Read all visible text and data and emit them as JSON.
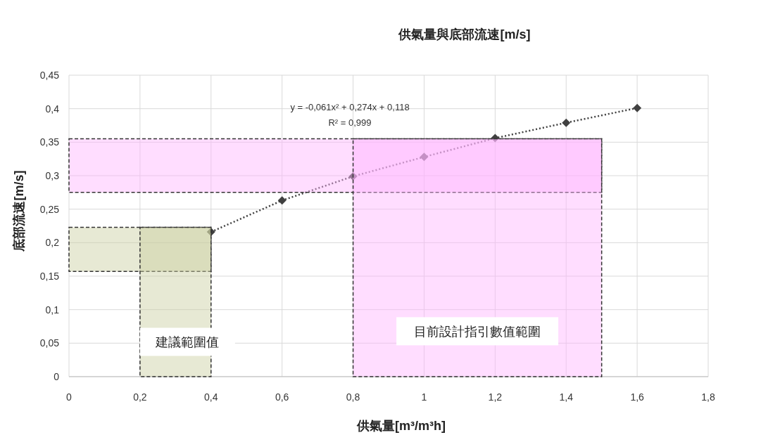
{
  "chart_data": {
    "type": "line",
    "title": "供氣量與底部流速[m/s]",
    "xlabel": "供氣量[m³/m³h]",
    "ylabel": "底部流速[m/s]",
    "x": [
      0.4,
      0.6,
      0.8,
      1.0,
      1.2,
      1.4,
      1.6
    ],
    "series": [
      {
        "color": "#404040",
        "values": [
          0.216,
          0.263,
          0.299,
          0.328,
          0.356,
          0.379,
          0.401
        ]
      }
    ],
    "marker": "diamond",
    "line_style": "dotted",
    "grid": true,
    "xlim": [
      0,
      1.8
    ],
    "ylim": [
      0,
      0.45
    ],
    "xticks": [
      0,
      {
        "value": 0.2,
        "label": "0,2"
      },
      {
        "value": 0.4,
        "label": "0,4"
      },
      {
        "value": 0.6,
        "label": "0,6"
      },
      {
        "value": 0.8,
        "label": "0,8"
      },
      1,
      {
        "value": 1.2,
        "label": "1,2"
      },
      {
        "value": 1.4,
        "label": "1,4"
      },
      {
        "value": 1.6,
        "label": "1,6"
      },
      {
        "value": 1.8,
        "label": "1,8"
      }
    ],
    "yticks": [
      0,
      {
        "value": 0.05,
        "label": "0,05"
      },
      {
        "value": 0.1,
        "label": "0,1"
      },
      {
        "value": 0.15,
        "label": "0,15"
      },
      {
        "value": 0.2,
        "label": "0,2"
      },
      {
        "value": 0.25,
        "label": "0,25"
      },
      {
        "value": 0.3,
        "label": "0,3"
      },
      {
        "value": 0.35,
        "label": "0,35"
      },
      {
        "value": 0.4,
        "label": "0,4"
      },
      {
        "value": 0.45,
        "label": "0,45"
      }
    ],
    "bands": [
      {
        "axis": "y",
        "from": 0.157,
        "to": 0.223,
        "color": "#c9cfa0"
      },
      {
        "axis": "x",
        "from": 0.2,
        "to": 0.4,
        "color": "#c9cfa0",
        "label": "建議範圍值"
      },
      {
        "axis": "y",
        "from": 0.275,
        "to": 0.355,
        "color": "#ffb3ff"
      },
      {
        "axis": "x",
        "from": 0.8,
        "to": 1.5,
        "color": "#ffb3ff",
        "label": "目前設計指引數值範圍"
      }
    ],
    "annotations": [
      "y = -0,061x² + 0,274x + 0,118",
      "R² = 0,999"
    ]
  }
}
